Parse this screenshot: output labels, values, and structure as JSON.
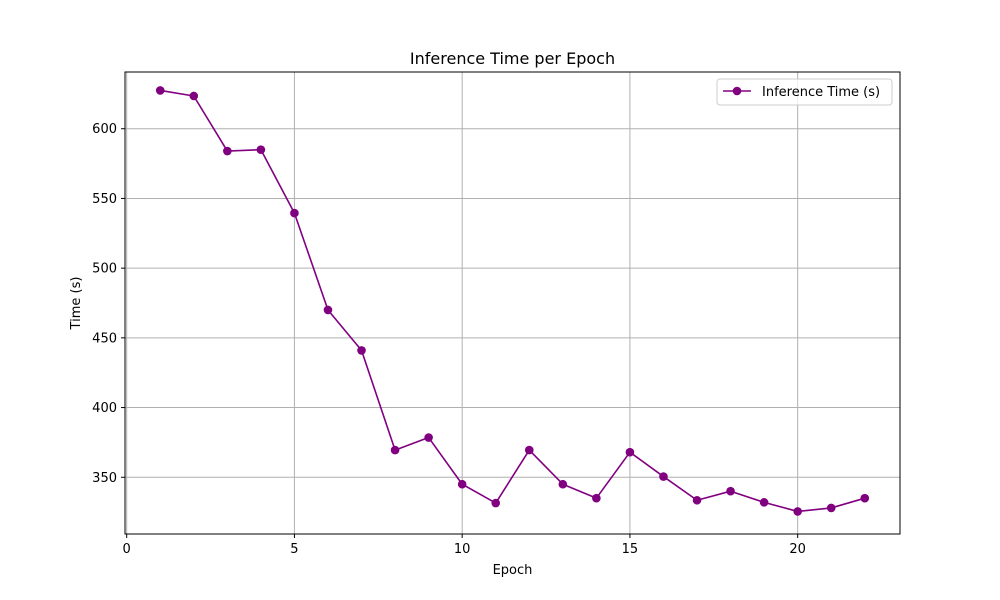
{
  "chart_data": {
    "type": "line",
    "title": "Inference Time per Epoch",
    "xlabel": "Epoch",
    "ylabel": "Time (s)",
    "xlim": [
      -0.05,
      23.05
    ],
    "ylim": [
      309.3,
      640.7
    ],
    "xticks": [
      0,
      5,
      10,
      15,
      20
    ],
    "yticks": [
      350,
      400,
      450,
      500,
      550,
      600
    ],
    "grid": true,
    "legend_position": "top-right",
    "series": [
      {
        "name": "Inference Time (s)",
        "color": "#800080",
        "marker": "circle",
        "x": [
          1,
          2,
          3,
          4,
          5,
          6,
          7,
          8,
          9,
          10,
          11,
          12,
          13,
          14,
          15,
          16,
          17,
          18,
          19,
          20,
          21,
          22
        ],
        "y": [
          627.5,
          623.5,
          584.0,
          585.0,
          539.5,
          470.0,
          441.0,
          369.5,
          378.5,
          345.0,
          331.5,
          369.5,
          345.0,
          335.0,
          368.0,
          350.5,
          333.5,
          340.0,
          332.0,
          325.5,
          328.0,
          335.0
        ]
      }
    ]
  }
}
